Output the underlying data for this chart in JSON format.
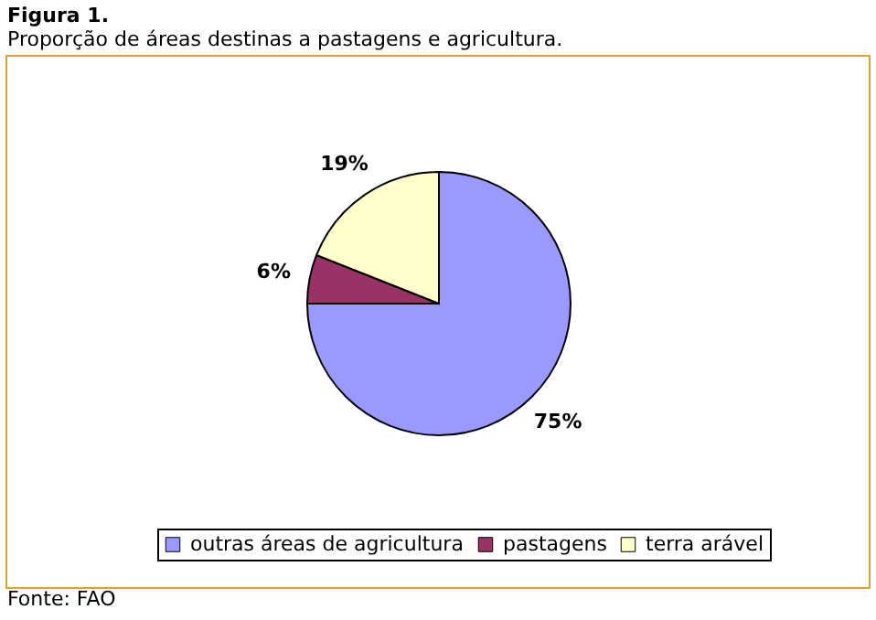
{
  "chart_data": {
    "type": "pie",
    "title": "Figura 1.",
    "subtitle": "Proporção de áreas destinas a pastagens e agricultura.",
    "categories": [
      "outras áreas de agricultura",
      "pastagens",
      "terra arável"
    ],
    "values": [
      75,
      6,
      19
    ],
    "colors": [
      "#9999ff",
      "#993366",
      "#ffffcc"
    ],
    "value_labels": [
      "75%",
      "6%",
      "19%"
    ],
    "legend": "bottom",
    "annotations": [
      "Fonte: FAO"
    ]
  }
}
